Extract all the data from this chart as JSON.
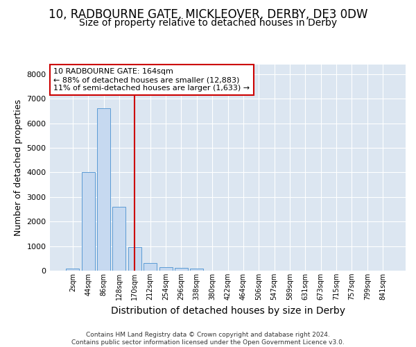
{
  "title1": "10, RADBOURNE GATE, MICKLEOVER, DERBY, DE3 0DW",
  "title2": "Size of property relative to detached houses in Derby",
  "xlabel": "Distribution of detached houses by size in Derby",
  "ylabel": "Number of detached properties",
  "categories": [
    "2sqm",
    "44sqm",
    "86sqm",
    "128sqm",
    "170sqm",
    "212sqm",
    "254sqm",
    "296sqm",
    "338sqm",
    "380sqm",
    "422sqm",
    "464sqm",
    "506sqm",
    "547sqm",
    "589sqm",
    "631sqm",
    "673sqm",
    "715sqm",
    "757sqm",
    "799sqm",
    "841sqm"
  ],
  "values": [
    75,
    4000,
    6600,
    2600,
    950,
    320,
    130,
    120,
    95,
    0,
    0,
    0,
    0,
    0,
    0,
    0,
    0,
    0,
    0,
    0,
    0
  ],
  "bar_color": "#c6d9f0",
  "bar_edge_color": "#5b9bd5",
  "vline_index": 4,
  "vline_color": "#cc0000",
  "ylim": [
    0,
    8400
  ],
  "yticks": [
    0,
    1000,
    2000,
    3000,
    4000,
    5000,
    6000,
    7000,
    8000
  ],
  "annotation_text": "10 RADBOURNE GATE: 164sqm\n← 88% of detached houses are smaller (12,883)\n11% of semi-detached houses are larger (1,633) →",
  "annotation_box_color": "#ffffff",
  "annotation_box_edge": "#cc0000",
  "footer": "Contains HM Land Registry data © Crown copyright and database right 2024.\nContains public sector information licensed under the Open Government Licence v3.0.",
  "bg_color": "#dce6f1",
  "grid_color": "#ffffff",
  "title1_fontsize": 12,
  "title2_fontsize": 10,
  "ylabel_fontsize": 9,
  "xlabel_fontsize": 10
}
